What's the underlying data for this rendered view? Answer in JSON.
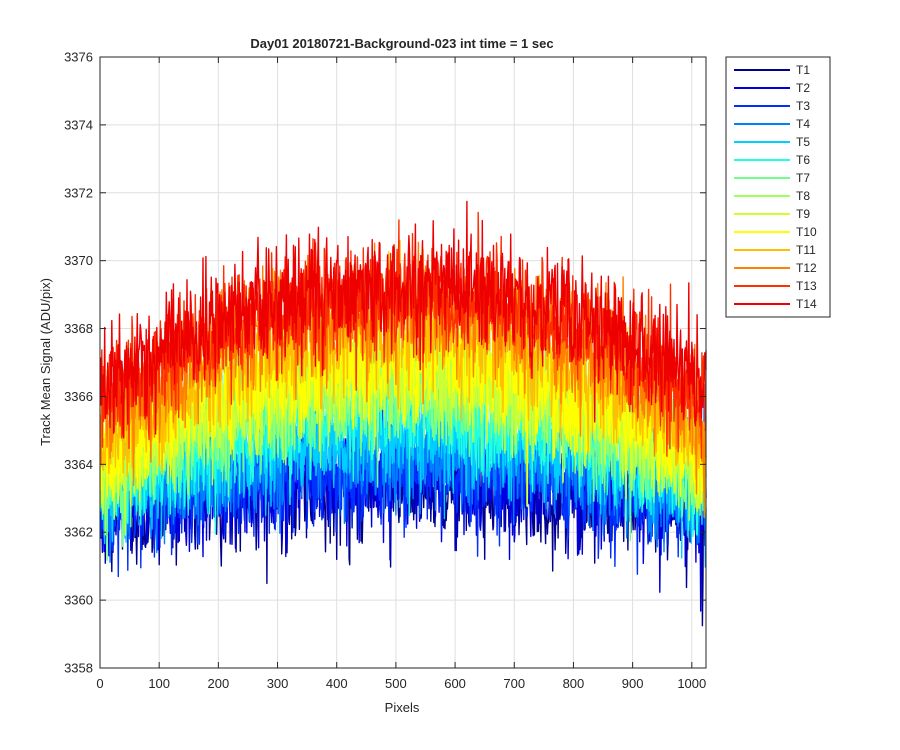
{
  "chart_data": {
    "type": "line",
    "title": "Day01 20180721-Background-023 int time = 1 sec",
    "xlabel": "Pixels",
    "ylabel": "Track Mean Signal (ADU/pix)",
    "xlim": [
      0,
      1024
    ],
    "ylim": [
      3358,
      3376
    ],
    "xticks": [
      0,
      100,
      200,
      300,
      400,
      500,
      600,
      700,
      800,
      900,
      1000
    ],
    "yticks": [
      3358,
      3360,
      3362,
      3364,
      3366,
      3368,
      3370,
      3372,
      3374,
      3376
    ],
    "grid": true,
    "legend_position": "outside-top-right",
    "n_points": 1024,
    "noise_amplitude": 1.1,
    "series": [
      {
        "name": "T1",
        "color": "#00008f",
        "edge": 3362.6,
        "center": 3363.4
      },
      {
        "name": "T2",
        "color": "#0000df",
        "edge": 3362.7,
        "center": 3363.6
      },
      {
        "name": "T3",
        "color": "#0030ff",
        "edge": 3362.8,
        "center": 3363.9
      },
      {
        "name": "T4",
        "color": "#0080ff",
        "edge": 3363.0,
        "center": 3364.4
      },
      {
        "name": "T5",
        "color": "#00cfff",
        "edge": 3363.1,
        "center": 3365.0
      },
      {
        "name": "T6",
        "color": "#20ffdf",
        "edge": 3363.3,
        "center": 3365.6
      },
      {
        "name": "T7",
        "color": "#70ff8f",
        "edge": 3363.5,
        "center": 3366.1
      },
      {
        "name": "T8",
        "color": "#9fff60",
        "edge": 3363.7,
        "center": 3366.4
      },
      {
        "name": "T9",
        "color": "#cfff30",
        "edge": 3363.9,
        "center": 3366.7
      },
      {
        "name": "T10",
        "color": "#ffff00",
        "edge": 3364.2,
        "center": 3367.0
      },
      {
        "name": "T11",
        "color": "#ffbf00",
        "edge": 3364.6,
        "center": 3368.0
      },
      {
        "name": "T12",
        "color": "#ff7f00",
        "edge": 3365.2,
        "center": 3368.6
      },
      {
        "name": "T13",
        "color": "#ff3000",
        "edge": 3365.8,
        "center": 3369.0
      },
      {
        "name": "T14",
        "color": "#ef0000",
        "edge": 3366.3,
        "center": 3369.3
      }
    ]
  }
}
